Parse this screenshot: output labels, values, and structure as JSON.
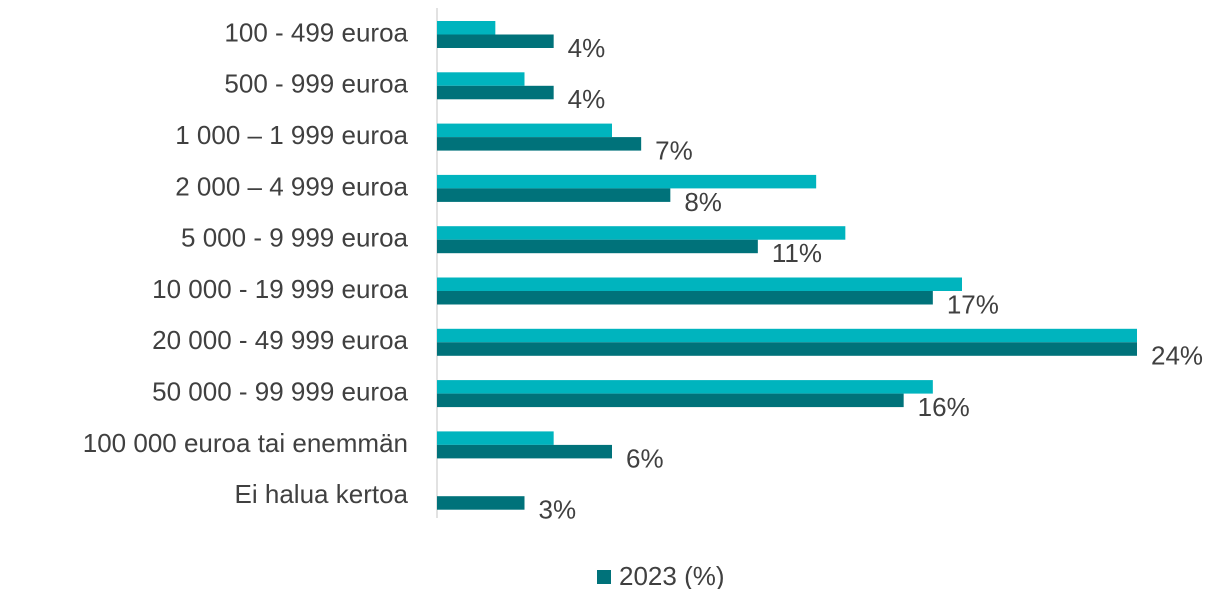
{
  "chart_data": {
    "type": "hbar",
    "categories": [
      "100 - 499 euroa",
      "500 - 999 euroa",
      "1 000 – 1 999 euroa",
      "2 000 – 4 999 euroa",
      "5 000 - 9 999 euroa",
      "10 000 - 19 999 euroa",
      "20 000 - 49 999 euroa",
      "50 000 - 99 999 euroa",
      "100 000 euroa tai enemmän",
      "Ei halua kertoa"
    ],
    "series": [
      {
        "color": "#00b4be",
        "values": [
          2,
          3,
          6,
          13,
          14,
          18,
          24,
          17,
          4,
          null
        ]
      },
      {
        "name": "2023 (%)",
        "color": "#00727a",
        "values": [
          4,
          4,
          7,
          8,
          11,
          17,
          24,
          16,
          6,
          3
        ],
        "value_labels": [
          "4%",
          "4%",
          "7%",
          "8%",
          "11%",
          "17%",
          "24%",
          "16%",
          "6%",
          "3%"
        ]
      }
    ],
    "xlim": [
      0,
      24
    ],
    "legend": "bottom"
  }
}
